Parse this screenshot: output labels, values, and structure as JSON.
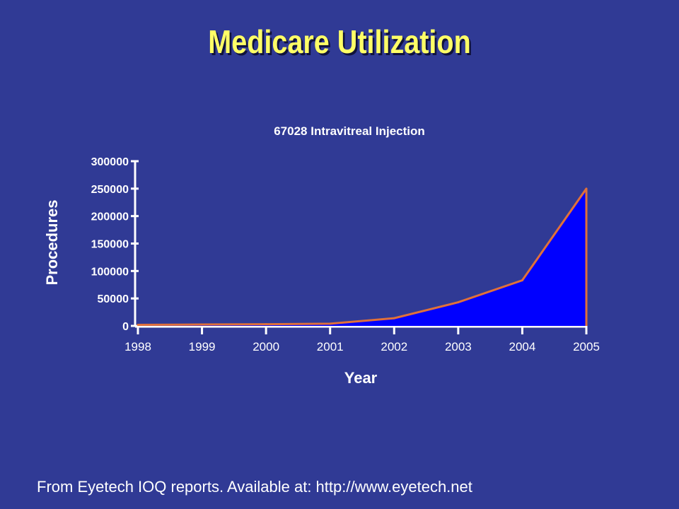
{
  "slide": {
    "title": "Medicare Utilization",
    "footer": "From Eyetech IOQ reports. Available at: http://www.eyetech.net"
  },
  "colors": {
    "background": "#303a95",
    "title": "#ffff66",
    "area_fill": "#0000ff",
    "line": "#e0703a",
    "axis": "#ffffff"
  },
  "chart_data": {
    "type": "area",
    "title": "67028 Intravitreal Injection",
    "xlabel": "Year",
    "ylabel": "Procedures",
    "x": [
      "1998",
      "1999",
      "2000",
      "2001",
      "2002",
      "2003",
      "2004",
      "2005"
    ],
    "yticks": [
      "0",
      "50000",
      "100000",
      "150000",
      "200000",
      "250000",
      "300000"
    ],
    "ylim": [
      0,
      300000
    ],
    "grid": false,
    "series": [
      {
        "values": [
          2000,
          2500,
          3000,
          4000,
          14000,
          43000,
          83000,
          250000
        ]
      }
    ]
  }
}
